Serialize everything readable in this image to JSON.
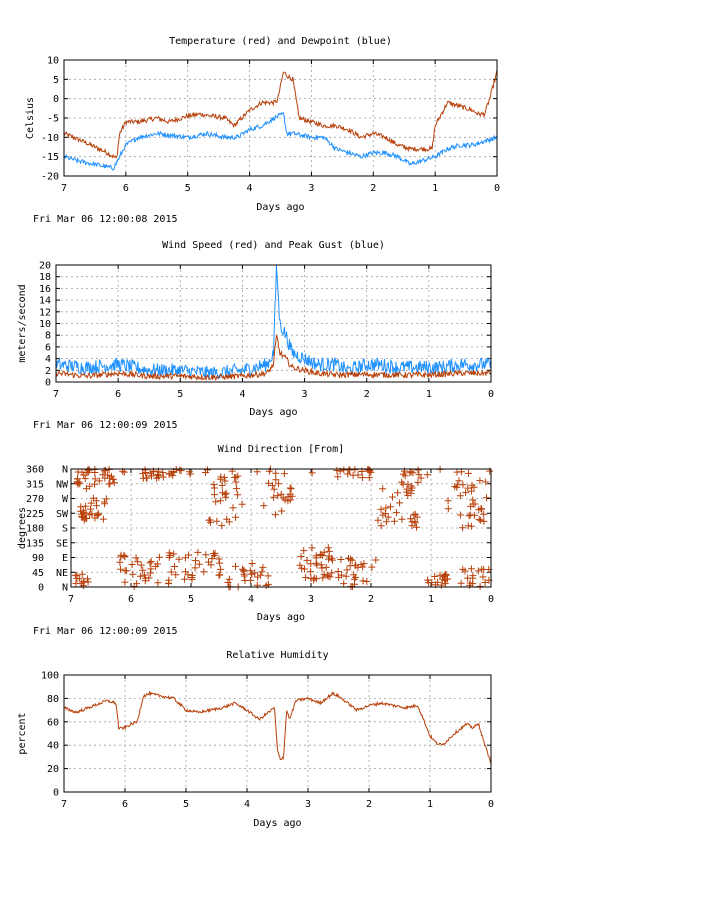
{
  "colors": {
    "red": "#b8400a",
    "blue": "#1e90ff",
    "grid": "#a0a0a0"
  },
  "chart_data": [
    {
      "id": "temperature",
      "type": "line",
      "title": "Temperature (red) and Dewpoint (blue)",
      "xlabel": "Days ago",
      "ylabel": "Celsius",
      "timestamp": "Fri Mar 06 12:00:08 2015",
      "xlim": [
        7,
        0
      ],
      "ylim": [
        -20,
        10
      ],
      "xticks": [
        "7",
        "6",
        "5",
        "4",
        "3",
        "2",
        "1",
        "0"
      ],
      "yticks": [
        "10",
        "5",
        "0",
        "-5",
        "-10",
        "-15",
        "-20"
      ],
      "series": [
        {
          "name": "Temperature",
          "color": "#b8400a",
          "noise": 0.6,
          "x": [
            7,
            6.7,
            6.3,
            6.15,
            6.1,
            6.0,
            5.8,
            5.5,
            5.3,
            5.0,
            4.8,
            4.6,
            4.4,
            4.25,
            4.0,
            3.8,
            3.6,
            3.55,
            3.45,
            3.4,
            3.3,
            3.2,
            3.0,
            2.8,
            2.6,
            2.4,
            2.2,
            2.0,
            1.8,
            1.6,
            1.4,
            1.3,
            1.2,
            1.05,
            1.0,
            0.9,
            0.8,
            0.6,
            0.4,
            0.3,
            0.2,
            0.1,
            0
          ],
          "y": [
            -9,
            -11,
            -14,
            -15.5,
            -9,
            -6,
            -6,
            -5,
            -6,
            -4.5,
            -4,
            -4.5,
            -5,
            -7,
            -3,
            -1,
            -1,
            -0.5,
            7,
            6,
            5,
            -5,
            -6,
            -7,
            -7,
            -8,
            -10,
            -9,
            -10,
            -12,
            -13,
            -13,
            -13,
            -13,
            -7,
            -4,
            -1,
            -2,
            -3,
            -4,
            -4,
            1,
            7
          ]
        },
        {
          "name": "Dewpoint",
          "color": "#1e90ff",
          "noise": 0.6,
          "x": [
            7,
            6.8,
            6.5,
            6.2,
            6.1,
            6.0,
            5.8,
            5.5,
            5.0,
            4.7,
            4.4,
            4.2,
            4.0,
            3.8,
            3.6,
            3.45,
            3.4,
            3.3,
            3.0,
            2.8,
            2.6,
            2.4,
            2.2,
            2.0,
            1.8,
            1.6,
            1.4,
            1.2,
            1.0,
            0.8,
            0.6,
            0.4,
            0.2,
            0
          ],
          "y": [
            -15,
            -16,
            -17,
            -18,
            -15,
            -12,
            -10,
            -9,
            -10,
            -9,
            -10,
            -10,
            -8,
            -7,
            -5,
            -4,
            -9,
            -9,
            -10,
            -10,
            -13,
            -14,
            -15,
            -14,
            -14,
            -15,
            -17,
            -16,
            -15,
            -13,
            -12,
            -12,
            -11,
            -10
          ]
        }
      ]
    },
    {
      "id": "wind",
      "type": "line",
      "title": "Wind Speed (red) and Peak Gust (blue)",
      "xlabel": "Days ago",
      "ylabel": "meters/second",
      "timestamp": "Fri Mar 06 12:00:09 2015",
      "xlim": [
        7,
        0
      ],
      "ylim": [
        0,
        20
      ],
      "xticks": [
        "7",
        "6",
        "5",
        "4",
        "3",
        "2",
        "1",
        "0"
      ],
      "yticks": [
        "20",
        "18",
        "16",
        "14",
        "12",
        "10",
        "8",
        "6",
        "4",
        "2",
        "0"
      ],
      "series": [
        {
          "name": "Peak Gust",
          "color": "#1e90ff",
          "noise": 1.2,
          "x": [
            7,
            6.5,
            6.0,
            5.5,
            5.0,
            4.5,
            4.0,
            3.6,
            3.5,
            3.45,
            3.4,
            3.3,
            3.2,
            3.0,
            2.8,
            2.5,
            2.3,
            2.0,
            1.8,
            1.5,
            1.2,
            1.0,
            0.8,
            0.5,
            0.3,
            0
          ],
          "y": [
            3,
            2.5,
            3,
            2,
            2,
            1.5,
            2,
            3,
            5,
            20,
            10,
            8,
            5,
            4,
            3,
            3,
            2,
            3,
            3,
            2.5,
            2.5,
            2.5,
            2.5,
            3,
            3,
            3
          ]
        },
        {
          "name": "Wind Speed",
          "color": "#b8400a",
          "noise": 0.5,
          "x": [
            7,
            6.5,
            6.0,
            5.5,
            5.0,
            4.5,
            4.0,
            3.6,
            3.5,
            3.45,
            3.4,
            3.3,
            3.2,
            3.0,
            2.8,
            2.5,
            2.0,
            1.5,
            1.0,
            0.5,
            0
          ],
          "y": [
            1.5,
            1,
            1.5,
            1,
            1,
            0.8,
            1,
            1.5,
            3,
            8,
            5,
            4,
            2.5,
            2,
            1.5,
            1.2,
            1.3,
            1.2,
            1.2,
            1.5,
            1.5
          ]
        }
      ]
    },
    {
      "id": "direction",
      "type": "scatter",
      "title": "Wind Direction [From]",
      "xlabel": "Days ago",
      "ylabel": "degrees",
      "timestamp": "Fri Mar 06 12:00:09 2015",
      "xlim": [
        7,
        0
      ],
      "ylim": [
        0,
        360
      ],
      "xticks": [
        "7",
        "6",
        "5",
        "4",
        "3",
        "2",
        "1",
        "0"
      ],
      "yticks": [
        {
          "value": 360,
          "deg": "360",
          "dir": "N"
        },
        {
          "value": 315,
          "deg": "315",
          "dir": "NW"
        },
        {
          "value": 270,
          "deg": "270",
          "dir": "W"
        },
        {
          "value": 225,
          "deg": "225",
          "dir": "SW"
        },
        {
          "value": 180,
          "deg": "180",
          "dir": "S"
        },
        {
          "value": 135,
          "deg": "135",
          "dir": "SE"
        },
        {
          "value": 90,
          "deg": "90",
          "dir": "E"
        },
        {
          "value": 45,
          "deg": "45",
          "dir": "NE"
        },
        {
          "value": 0,
          "deg": "0",
          "dir": "N"
        }
      ],
      "series": [
        {
          "name": "Direction",
          "color": "#b8400a",
          "clusters": [
            {
              "x": [
                6.9,
                6.5
              ],
              "y": [
                300,
                360
              ],
              "n": 22
            },
            {
              "x": [
                6.85,
                6.4
              ],
              "y": [
                200,
                280
              ],
              "n": 28
            },
            {
              "x": [
                6.5,
                6.1
              ],
              "y": [
                310,
                360
              ],
              "n": 14
            },
            {
              "x": [
                6.95,
                6.7
              ],
              "y": [
                0,
                40
              ],
              "n": 12
            },
            {
              "x": [
                6.2,
                5.5
              ],
              "y": [
                0,
                100
              ],
              "n": 30
            },
            {
              "x": [
                5.8,
                5.0
              ],
              "y": [
                330,
                360
              ],
              "n": 26
            },
            {
              "x": [
                5.4,
                4.5
              ],
              "y": [
                10,
                110
              ],
              "n": 36
            },
            {
              "x": [
                4.7,
                4.1
              ],
              "y": [
                180,
                340
              ],
              "n": 30
            },
            {
              "x": [
                4.4,
                3.7
              ],
              "y": [
                0,
                80
              ],
              "n": 26
            },
            {
              "x": [
                3.8,
                3.3
              ],
              "y": [
                220,
                330
              ],
              "n": 20
            },
            {
              "x": [
                3.2,
                2.6
              ],
              "y": [
                20,
                120
              ],
              "n": 34
            },
            {
              "x": [
                2.7,
                1.9
              ],
              "y": [
                0,
                90
              ],
              "n": 30
            },
            {
              "x": [
                2.6,
                2.0
              ],
              "y": [
                330,
                360
              ],
              "n": 14
            },
            {
              "x": [
                1.9,
                1.2
              ],
              "y": [
                180,
                300
              ],
              "n": 30
            },
            {
              "x": [
                1.5,
                1.1
              ],
              "y": [
                300,
                360
              ],
              "n": 14
            },
            {
              "x": [
                1.1,
                0.7
              ],
              "y": [
                0,
                40
              ],
              "n": 18
            },
            {
              "x": [
                0.75,
                0.05
              ],
              "y": [
                180,
                330
              ],
              "n": 34
            },
            {
              "x": [
                0.5,
                0.0
              ],
              "y": [
                0,
                60
              ],
              "n": 18
            },
            {
              "x": [
                7,
                0
              ],
              "y": [
                340,
                360
              ],
              "n": 26
            }
          ]
        }
      ]
    },
    {
      "id": "humidity",
      "type": "line",
      "title": "Relative Humidity",
      "xlabel": "Days ago",
      "ylabel": "percent",
      "timestamp": "",
      "xlim": [
        7,
        0
      ],
      "ylim": [
        0,
        100
      ],
      "xticks": [
        "7",
        "6",
        "5",
        "4",
        "3",
        "2",
        "1",
        "0"
      ],
      "yticks": [
        "100",
        "80",
        "60",
        "40",
        "20",
        "0"
      ],
      "series": [
        {
          "name": "Humidity",
          "color": "#b8400a",
          "noise": 1.2,
          "x": [
            7,
            6.8,
            6.6,
            6.3,
            6.15,
            6.1,
            6.0,
            5.9,
            5.8,
            5.7,
            5.6,
            5.4,
            5.2,
            5.0,
            4.8,
            4.6,
            4.4,
            4.2,
            4.0,
            3.8,
            3.6,
            3.55,
            3.5,
            3.45,
            3.4,
            3.35,
            3.3,
            3.2,
            3.0,
            2.8,
            2.6,
            2.5,
            2.4,
            2.2,
            2.0,
            1.8,
            1.6,
            1.4,
            1.2,
            1.0,
            0.9,
            0.8,
            0.6,
            0.4,
            0.3,
            0.2,
            0.1,
            0
          ],
          "y": [
            72,
            68,
            72,
            78,
            76,
            54,
            55,
            58,
            60,
            82,
            84,
            82,
            80,
            70,
            68,
            70,
            72,
            76,
            70,
            62,
            70,
            72,
            35,
            28,
            30,
            70,
            62,
            78,
            80,
            76,
            84,
            82,
            78,
            70,
            74,
            76,
            74,
            72,
            74,
            48,
            42,
            40,
            50,
            58,
            55,
            58,
            40,
            25
          ]
        }
      ]
    }
  ]
}
